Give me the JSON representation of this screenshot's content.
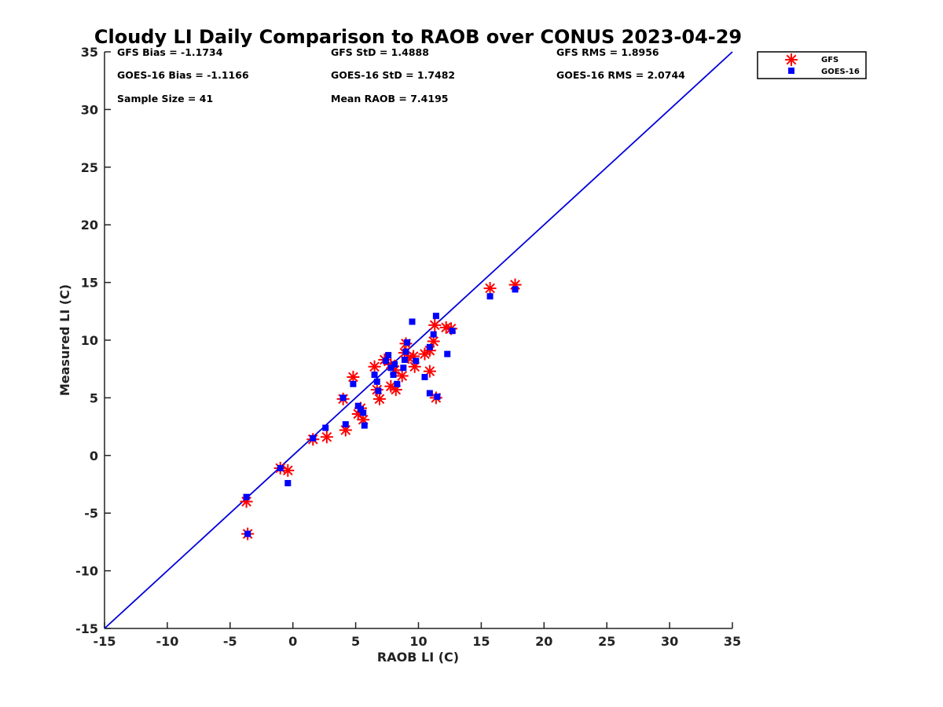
{
  "chart_data": {
    "type": "scatter",
    "title": "Cloudy LI Daily Comparison to RAOB over CONUS 2023-04-29",
    "xlabel": "RAOB LI (C)",
    "ylabel": "Measured LI (C)",
    "xlim": [
      -15,
      35
    ],
    "ylim": [
      -15,
      35
    ],
    "xticks": [
      -15,
      -10,
      -5,
      0,
      5,
      10,
      15,
      20,
      25,
      30,
      35
    ],
    "yticks": [
      -15,
      -10,
      -5,
      0,
      5,
      10,
      15,
      20,
      25,
      30,
      35
    ],
    "grid": false,
    "legend_position": "top-right",
    "reference_line": {
      "x": [
        -15,
        35
      ],
      "y": [
        -15,
        35
      ],
      "color": "#0000dd"
    },
    "stats": {
      "gfs_bias": "GFS Bias = -1.1734",
      "gfs_std": "GFS StD = 1.4888",
      "gfs_rms": "GFS RMS = 1.8956",
      "goes_bias": "GOES-16 Bias = -1.1166",
      "goes_std": "GOES-16 StD = 1.7482",
      "goes_rms": "GOES-16 RMS = 2.0744",
      "sample_size": "Sample Size = 41",
      "mean_raob": "Mean RAOB = 7.4195"
    },
    "series": [
      {
        "name": "GFS",
        "marker": "asterisk",
        "color": "#ff0000",
        "points": [
          [
            -3.7,
            -4.0
          ],
          [
            -3.6,
            -6.8
          ],
          [
            -1.0,
            -1.1
          ],
          [
            -0.4,
            -1.3
          ],
          [
            1.6,
            1.4
          ],
          [
            2.7,
            1.6
          ],
          [
            4.0,
            4.9
          ],
          [
            4.2,
            2.2
          ],
          [
            4.8,
            6.8
          ],
          [
            5.2,
            3.6
          ],
          [
            5.4,
            4.1
          ],
          [
            5.6,
            3.1
          ],
          [
            6.5,
            7.7
          ],
          [
            6.7,
            5.7
          ],
          [
            6.9,
            4.9
          ],
          [
            7.3,
            8.3
          ],
          [
            7.8,
            7.9
          ],
          [
            7.8,
            6.0
          ],
          [
            8.1,
            7.4
          ],
          [
            8.2,
            5.7
          ],
          [
            8.7,
            6.9
          ],
          [
            8.9,
            8.9
          ],
          [
            9.0,
            9.7
          ],
          [
            9.2,
            8.5
          ],
          [
            9.6,
            8.6
          ],
          [
            9.7,
            7.7
          ],
          [
            10.5,
            8.8
          ],
          [
            10.9,
            7.3
          ],
          [
            10.9,
            9.1
          ],
          [
            11.2,
            9.9
          ],
          [
            11.3,
            11.3
          ],
          [
            11.4,
            5.0
          ],
          [
            12.2,
            11.1
          ],
          [
            12.6,
            11.0
          ],
          [
            15.7,
            14.5
          ],
          [
            17.7,
            14.8
          ]
        ]
      },
      {
        "name": "GOES-16",
        "marker": "square",
        "color": "#0000ff",
        "points": [
          [
            -3.7,
            -3.6
          ],
          [
            -3.6,
            -6.8
          ],
          [
            -1.0,
            -1.1
          ],
          [
            -0.4,
            -2.4
          ],
          [
            1.6,
            1.5
          ],
          [
            2.6,
            2.4
          ],
          [
            4.0,
            5.0
          ],
          [
            4.2,
            2.7
          ],
          [
            4.8,
            6.2
          ],
          [
            5.2,
            4.3
          ],
          [
            5.4,
            4.0
          ],
          [
            5.6,
            3.7
          ],
          [
            5.7,
            2.6
          ],
          [
            6.5,
            7.0
          ],
          [
            6.7,
            6.4
          ],
          [
            6.8,
            5.6
          ],
          [
            7.4,
            8.2
          ],
          [
            7.6,
            8.7
          ],
          [
            7.8,
            7.6
          ],
          [
            8.0,
            7.0
          ],
          [
            8.1,
            7.9
          ],
          [
            8.3,
            6.2
          ],
          [
            8.8,
            7.6
          ],
          [
            8.9,
            8.3
          ],
          [
            9.0,
            9.0
          ],
          [
            9.1,
            9.8
          ],
          [
            9.5,
            11.6
          ],
          [
            9.8,
            8.2
          ],
          [
            10.5,
            6.8
          ],
          [
            10.9,
            5.4
          ],
          [
            10.9,
            9.4
          ],
          [
            11.2,
            10.5
          ],
          [
            11.4,
            12.1
          ],
          [
            11.5,
            5.1
          ],
          [
            12.3,
            8.8
          ],
          [
            12.7,
            10.8
          ],
          [
            15.7,
            13.8
          ],
          [
            17.7,
            14.4
          ]
        ]
      }
    ]
  }
}
